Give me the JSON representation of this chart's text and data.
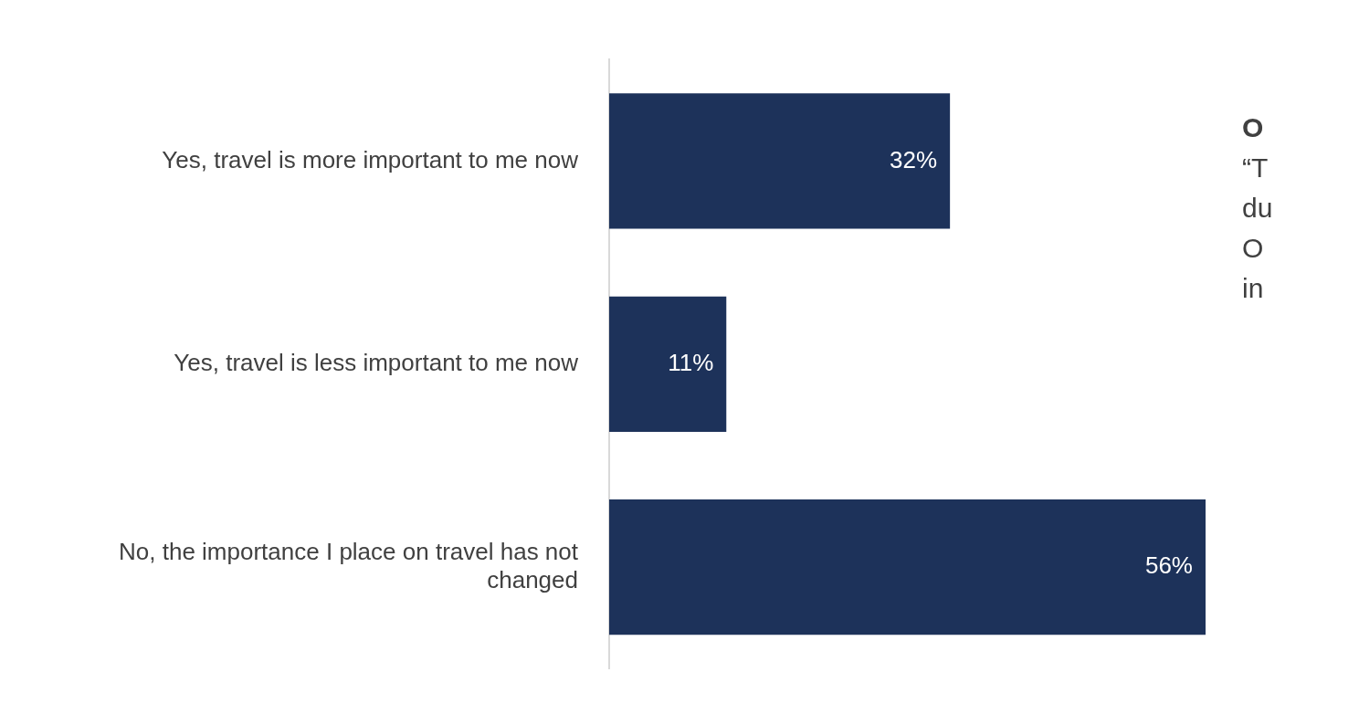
{
  "chart_data": {
    "type": "bar",
    "orientation": "horizontal",
    "categories": [
      "Yes, travel is more important to me now",
      "Yes, travel is less important to me now",
      "No, the importance I place on travel has not changed"
    ],
    "values": [
      32,
      11,
      56
    ],
    "value_labels": [
      "32%",
      "11%",
      "56%"
    ],
    "color": "#1d325a",
    "legend": false,
    "annotations": [
      "O",
      "“T",
      "du",
      "O",
      "in"
    ]
  }
}
